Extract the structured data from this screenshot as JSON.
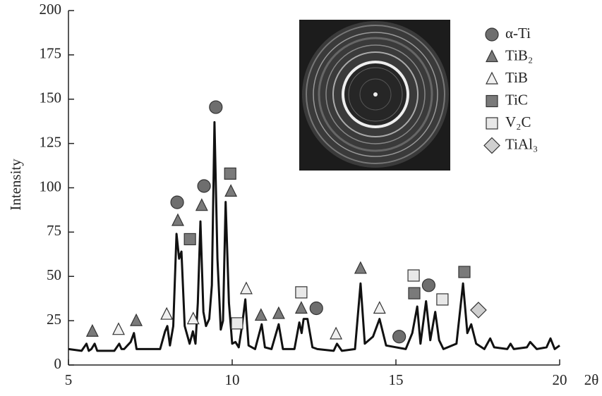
{
  "chart_data": {
    "type": "line",
    "xlabel": "2θ",
    "ylabel": "Intensity",
    "xlim": [
      5,
      20
    ],
    "xticks": [
      5,
      10,
      15,
      20
    ],
    "ylim": [
      0,
      200
    ],
    "yticks": [
      0,
      25,
      50,
      75,
      100,
      125,
      150,
      175,
      200
    ],
    "color": "#111111",
    "x": [
      5,
      5.4,
      5.55,
      5.62,
      5.7,
      5.8,
      5.88,
      6.4,
      6.55,
      6.62,
      6.7,
      6.9,
      7.0,
      7.08,
      7.8,
      7.95,
      8.02,
      8.1,
      8.2,
      8.3,
      8.38,
      8.45,
      8.55,
      8.7,
      8.8,
      8.88,
      8.95,
      9.03,
      9.12,
      9.2,
      9.3,
      9.38,
      9.46,
      9.55,
      9.65,
      9.72,
      9.8,
      9.9,
      10.0,
      10.1,
      10.2,
      10.3,
      10.4,
      10.5,
      10.7,
      10.9,
      11.0,
      11.2,
      11.42,
      11.55,
      11.9,
      12.05,
      12.12,
      12.18,
      12.3,
      12.45,
      12.6,
      13.1,
      13.2,
      13.35,
      13.75,
      13.92,
      14.05,
      14.3,
      14.5,
      14.7,
      15.3,
      15.5,
      15.65,
      15.75,
      15.92,
      16.05,
      16.2,
      16.32,
      16.45,
      16.85,
      17.05,
      17.18,
      17.3,
      17.45,
      17.7,
      17.88,
      18.0,
      18.4,
      18.5,
      18.6,
      19.0,
      19.1,
      19.3,
      19.6,
      19.72,
      19.85,
      20
    ],
    "values": [
      9,
      8,
      12,
      8,
      9,
      12,
      8,
      8,
      12,
      9,
      9,
      13,
      18,
      9,
      9,
      19,
      22,
      11,
      22,
      74,
      60,
      64,
      22,
      12,
      19,
      12,
      35,
      81,
      30,
      22,
      26,
      45,
      137,
      60,
      20,
      25,
      92,
      35,
      12,
      13,
      10,
      22,
      37,
      11,
      9,
      23,
      10,
      9,
      23,
      9,
      9,
      24,
      18,
      26,
      26,
      10,
      9,
      8,
      12,
      8,
      9,
      46,
      12,
      16,
      26,
      11,
      9,
      18,
      33,
      12,
      36,
      14,
      30,
      14,
      9,
      12,
      46,
      18,
      23,
      12,
      9,
      15,
      10,
      9,
      12,
      9,
      10,
      13,
      9,
      10,
      15,
      9,
      11
    ],
    "phases": [
      {
        "name": "α-Ti",
        "shape": "circle",
        "color": "#6e6e6e",
        "x": [
          8.32,
          9.14,
          9.5,
          12.57,
          15.1,
          16.0
        ],
        "y": [
          91.8,
          101,
          145.5,
          32,
          16,
          45
        ]
      },
      {
        "name": "TiB₂",
        "shape": "triangle",
        "color": "#7a7a7a",
        "x": [
          5.73,
          7.07,
          8.34,
          9.07,
          9.96,
          10.88,
          11.42,
          12.11,
          13.92
        ],
        "y": [
          19,
          25,
          81.5,
          90,
          98,
          28,
          29,
          32,
          54.5
        ]
      },
      {
        "name": "TiB",
        "shape": "triangle",
        "color": "#f0f0f0",
        "x": [
          6.53,
          8.0,
          8.81,
          10.43,
          13.17,
          14.5
        ],
        "y": [
          20,
          28.6,
          26,
          43,
          17.5,
          32
        ]
      },
      {
        "name": "TiC",
        "shape": "square",
        "color": "#7a7a7a",
        "x": [
          8.71,
          9.94,
          15.56,
          17.09
        ],
        "y": [
          71,
          108,
          40.5,
          52.5
        ]
      },
      {
        "name": "V₂C",
        "shape": "square",
        "color": "#e8e8e8",
        "x": [
          10.15,
          12.11,
          15.54,
          16.42
        ],
        "y": [
          23.5,
          41,
          50.5,
          37
        ]
      },
      {
        "name": "TiAl₃",
        "shape": "diamond",
        "color": "#cfcfcf",
        "x": [
          17.52
        ],
        "y": [
          31
        ]
      }
    ]
  }
}
